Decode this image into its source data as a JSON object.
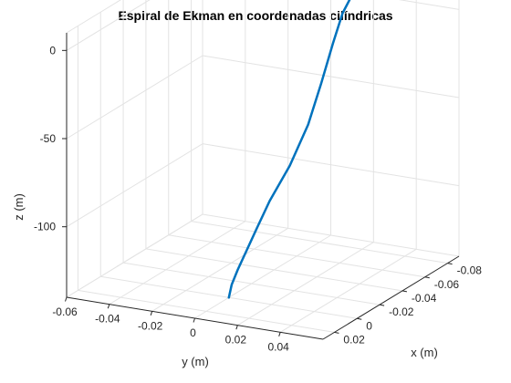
{
  "chart_data": {
    "type": "line3d",
    "title": "Espiral de Ekman en coordenadas cilíndricas",
    "xlabel": "x (m)",
    "ylabel": "y (m)",
    "zlabel": "z (m)",
    "xlim": [
      0.03,
      -0.09
    ],
    "ylim": [
      -0.06,
      0.06
    ],
    "zlim": [
      -140,
      10
    ],
    "xticks": [
      0.02,
      0,
      -0.02,
      -0.04,
      -0.06,
      -0.08
    ],
    "yticks": [
      -0.06,
      -0.04,
      -0.02,
      0,
      0.02,
      0.04
    ],
    "zticks": [
      0,
      -50,
      -100
    ],
    "xtick_labels": [
      "0.02",
      "0",
      "-0.02",
      "-0.04",
      "-0.06",
      "-0.08"
    ],
    "ytick_labels": [
      "-0.06",
      "-0.04",
      "-0.02",
      "0",
      "0.02",
      "0.04"
    ],
    "ztick_labels": [
      "0",
      "-50",
      "-100"
    ],
    "grid": true,
    "series": [
      {
        "color": "#0072BD",
        "x": [
          0.0,
          0.005,
          0.011,
          0.015,
          0.017,
          0.013,
          -0.001,
          -0.021,
          -0.04,
          -0.058,
          -0.074,
          -0.086
        ],
        "y": [
          0.0,
          0.004,
          0.01,
          0.016,
          0.022,
          0.026,
          0.028,
          0.026,
          0.022,
          0.018,
          0.014,
          0.012
        ],
        "z": [
          -140,
          -130,
          -118,
          -105,
          -90,
          -75,
          -60,
          -45,
          -30,
          -15,
          -5,
          0
        ]
      }
    ]
  }
}
